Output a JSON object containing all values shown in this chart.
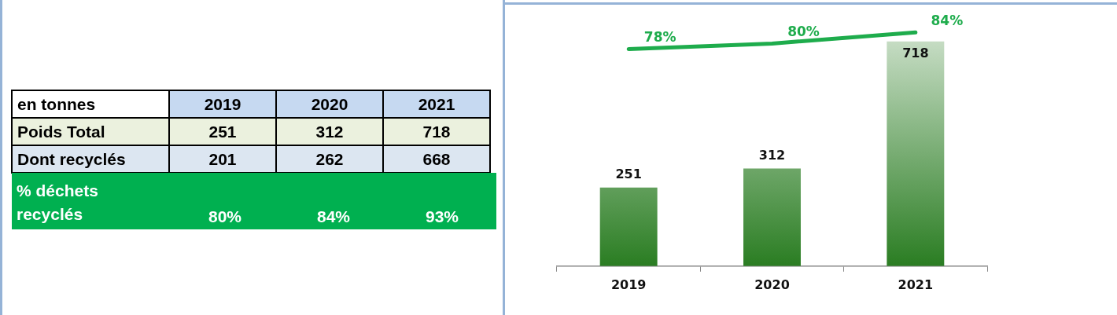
{
  "chart_data": [
    {
      "type": "heatmap",
      "title": "en tonnes",
      "categories": [
        "2019",
        "2020",
        "2021"
      ],
      "y_categories": [
        "Poids Total",
        "Dont recyclés",
        "% déchets recyclés"
      ],
      "cells": [
        [
          251,
          312,
          718
        ],
        [
          201,
          262,
          668
        ],
        [
          80,
          84,
          93
        ]
      ],
      "cell_labels": [
        [
          "251",
          "312",
          "718"
        ],
        [
          "201",
          "262",
          "668"
        ],
        [
          "80%",
          "84%",
          "93%"
        ]
      ]
    },
    {
      "type": "bar",
      "categories": [
        "2019",
        "2020",
        "2021"
      ],
      "tick_labels": "x",
      "grid": false,
      "legend": false,
      "series": [
        {
          "type": "bar",
          "color": "#2a7d22",
          "values": [
            251,
            312,
            718
          ],
          "value_labels": [
            "251",
            "312",
            "718"
          ]
        },
        {
          "type": "line",
          "axis": "y2",
          "color": "#1eac4c",
          "values": [
            78,
            80,
            84
          ],
          "value_labels": [
            "78%",
            "80%",
            "84%"
          ],
          "marker": "none"
        }
      ]
    }
  ]
}
